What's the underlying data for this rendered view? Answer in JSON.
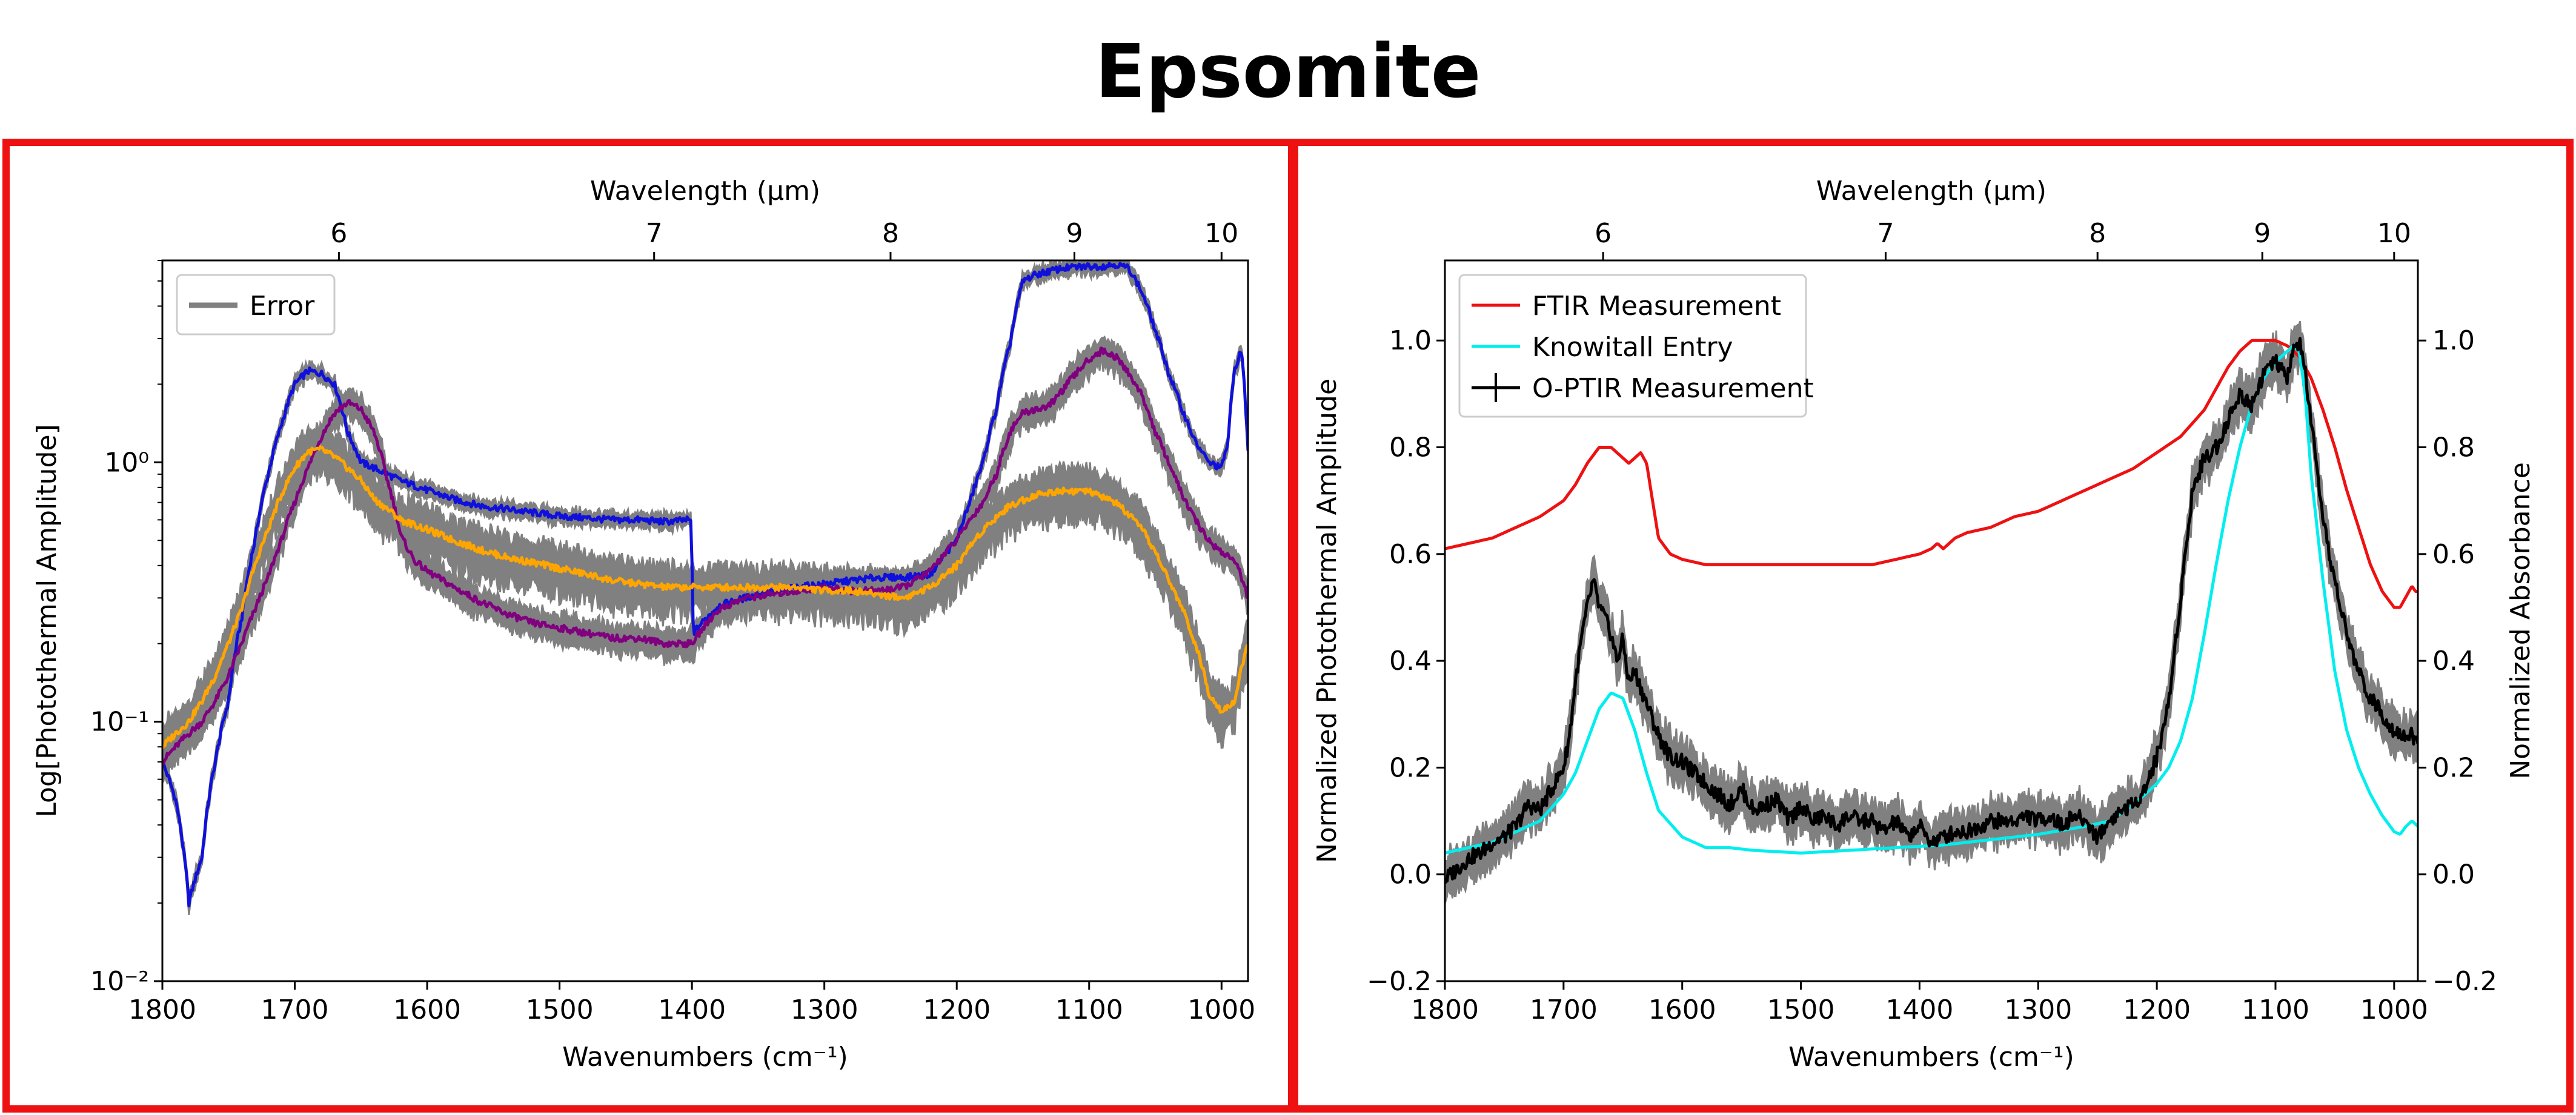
{
  "page": {
    "title": "Epsomite"
  },
  "colors": {
    "frame": "#ee1111",
    "error_band": "#808080",
    "blue": "#1010dd",
    "purple": "#800080",
    "orange": "#ffa500",
    "ftir": "#ee1111",
    "knowitall": "#00eeee",
    "optir": "#000000"
  },
  "chart_data": [
    {
      "type": "line",
      "title": "",
      "xlabel": "Wavenumbers (cm⁻¹)",
      "ylabel": "Log[Photothermal Amplitude]",
      "top_xlabel": "Wavelength (μm)",
      "xlim": [
        1800,
        980
      ],
      "ylim": [
        0.01,
        6
      ],
      "yscale": "log",
      "x_ticks": [
        1800,
        1700,
        1600,
        1500,
        1400,
        1300,
        1200,
        1100,
        1000
      ],
      "y_ticks": [
        {
          "value": 0.01,
          "label": "10⁻²"
        },
        {
          "value": 0.1,
          "label": "10⁻¹"
        },
        {
          "value": 1,
          "label": "10⁰"
        }
      ],
      "top_ticks": [
        6,
        7,
        8,
        9,
        10
      ],
      "legend": {
        "position": "top-left",
        "entries": [
          {
            "label": "Error",
            "color": "#808080"
          }
        ]
      },
      "series": [
        {
          "name": "blue spectrum",
          "color": "#1010dd",
          "band": true,
          "band_frac": 0.06,
          "x": [
            1800,
            1790,
            1780,
            1770,
            1760,
            1750,
            1740,
            1730,
            1720,
            1710,
            1700,
            1690,
            1680,
            1670,
            1660,
            1650,
            1640,
            1630,
            1620,
            1600,
            1580,
            1560,
            1540,
            1520,
            1500,
            1480,
            1460,
            1440,
            1420,
            1401,
            1399,
            1380,
            1350,
            1320,
            1300,
            1280,
            1260,
            1240,
            1220,
            1200,
            1190,
            1180,
            1170,
            1160,
            1150,
            1140,
            1120,
            1100,
            1090,
            1080,
            1070,
            1060,
            1050,
            1040,
            1030,
            1020,
            1010,
            1000,
            995,
            990,
            985,
            982,
            980
          ],
          "y": [
            0.07,
            0.05,
            0.02,
            0.03,
            0.07,
            0.12,
            0.25,
            0.5,
            0.9,
            1.4,
            2.0,
            2.25,
            2.2,
            2.0,
            1.3,
            1.0,
            0.95,
            0.9,
            0.85,
            0.78,
            0.72,
            0.68,
            0.66,
            0.64,
            0.62,
            0.61,
            0.6,
            0.6,
            0.59,
            0.6,
            0.22,
            0.28,
            0.31,
            0.33,
            0.34,
            0.35,
            0.36,
            0.36,
            0.37,
            0.5,
            0.7,
            1.0,
            1.6,
            2.8,
            5.0,
            5.3,
            5.6,
            5.7,
            5.7,
            5.8,
            5.6,
            4.5,
            3.2,
            2.2,
            1.6,
            1.2,
            1.0,
            0.95,
            1.2,
            2.3,
            2.7,
            1.7,
            1.1
          ]
        },
        {
          "name": "purple spectrum",
          "color": "#800080",
          "band": true,
          "band_frac": 0.12,
          "x": [
            1800,
            1790,
            1780,
            1770,
            1760,
            1750,
            1740,
            1730,
            1720,
            1710,
            1700,
            1690,
            1680,
            1670,
            1660,
            1650,
            1640,
            1630,
            1620,
            1610,
            1600,
            1580,
            1560,
            1540,
            1520,
            1500,
            1480,
            1460,
            1440,
            1420,
            1400,
            1380,
            1360,
            1340,
            1320,
            1300,
            1280,
            1260,
            1240,
            1220,
            1200,
            1180,
            1170,
            1160,
            1150,
            1140,
            1130,
            1120,
            1110,
            1100,
            1090,
            1080,
            1070,
            1060,
            1050,
            1040,
            1030,
            1020,
            1010,
            1000,
            990,
            980
          ],
          "y": [
            0.07,
            0.08,
            0.09,
            0.1,
            0.12,
            0.15,
            0.2,
            0.27,
            0.36,
            0.5,
            0.7,
            0.95,
            1.25,
            1.55,
            1.7,
            1.6,
            1.3,
            0.85,
            0.52,
            0.42,
            0.38,
            0.33,
            0.29,
            0.26,
            0.24,
            0.23,
            0.22,
            0.21,
            0.21,
            0.2,
            0.2,
            0.27,
            0.3,
            0.31,
            0.32,
            0.33,
            0.32,
            0.32,
            0.33,
            0.38,
            0.5,
            0.7,
            0.9,
            1.3,
            1.55,
            1.6,
            1.65,
            1.9,
            2.2,
            2.5,
            2.7,
            2.55,
            2.2,
            1.8,
            1.3,
            1.0,
            0.75,
            0.6,
            0.5,
            0.45,
            0.42,
            0.3
          ]
        },
        {
          "name": "orange spectrum",
          "color": "#ffa500",
          "band": true,
          "band_frac": 0.2,
          "x": [
            1800,
            1790,
            1780,
            1770,
            1760,
            1750,
            1740,
            1730,
            1720,
            1710,
            1700,
            1690,
            1680,
            1670,
            1660,
            1650,
            1640,
            1620,
            1600,
            1580,
            1560,
            1540,
            1520,
            1500,
            1480,
            1460,
            1440,
            1420,
            1400,
            1380,
            1360,
            1340,
            1320,
            1300,
            1280,
            1260,
            1240,
            1220,
            1200,
            1180,
            1160,
            1140,
            1120,
            1100,
            1080,
            1060,
            1040,
            1020,
            1010,
            1000,
            990,
            980
          ],
          "y": [
            0.08,
            0.09,
            0.1,
            0.12,
            0.15,
            0.2,
            0.27,
            0.4,
            0.55,
            0.75,
            0.95,
            1.1,
            1.12,
            1.05,
            0.95,
            0.85,
            0.72,
            0.6,
            0.55,
            0.5,
            0.46,
            0.43,
            0.41,
            0.39,
            0.37,
            0.35,
            0.34,
            0.33,
            0.33,
            0.33,
            0.33,
            0.33,
            0.33,
            0.32,
            0.32,
            0.31,
            0.3,
            0.33,
            0.4,
            0.55,
            0.68,
            0.75,
            0.78,
            0.77,
            0.7,
            0.55,
            0.35,
            0.2,
            0.13,
            0.11,
            0.12,
            0.2
          ]
        }
      ]
    },
    {
      "type": "line",
      "title": "",
      "xlabel": "Wavenumbers (cm⁻¹)",
      "ylabel": "Normalized Photothermal Amplitude",
      "ylabel_right": "Normalized Absorbance",
      "top_xlabel": "Wavelength (μm)",
      "xlim": [
        1800,
        980
      ],
      "ylim": [
        -0.2,
        1.15
      ],
      "y2lim": [
        -0.2,
        1.15
      ],
      "x_ticks": [
        1800,
        1700,
        1600,
        1500,
        1400,
        1300,
        1200,
        1100,
        1000
      ],
      "y_ticks": [
        -0.2,
        0.0,
        0.2,
        0.4,
        0.6,
        0.8,
        1.0
      ],
      "y_tick_labels": [
        "−0.2",
        "0.0",
        "0.2",
        "0.4",
        "0.6",
        "0.8",
        "1.0"
      ],
      "top_ticks": [
        6,
        7,
        8,
        9,
        10
      ],
      "legend": {
        "position": "top-left",
        "entries": [
          {
            "label": "FTIR Measurement",
            "color": "#ee1111"
          },
          {
            "label": "Knowitall Entry",
            "color": "#00eeee"
          },
          {
            "label": "O-PTIR Measurement",
            "color": "#000000",
            "marker": "errorbar"
          }
        ]
      },
      "series": [
        {
          "name": "FTIR Measurement",
          "color": "#ee1111",
          "axis": "right",
          "x": [
            1800,
            1760,
            1720,
            1700,
            1690,
            1680,
            1670,
            1660,
            1650,
            1645,
            1640,
            1635,
            1630,
            1625,
            1620,
            1610,
            1600,
            1580,
            1560,
            1540,
            1520,
            1500,
            1480,
            1460,
            1440,
            1420,
            1400,
            1390,
            1385,
            1380,
            1370,
            1360,
            1340,
            1320,
            1300,
            1280,
            1260,
            1240,
            1220,
            1200,
            1180,
            1160,
            1150,
            1140,
            1130,
            1120,
            1110,
            1100,
            1090,
            1080,
            1070,
            1060,
            1050,
            1040,
            1030,
            1020,
            1010,
            1000,
            995,
            990,
            985,
            982
          ],
          "y": [
            0.61,
            0.63,
            0.67,
            0.7,
            0.73,
            0.77,
            0.8,
            0.8,
            0.78,
            0.77,
            0.78,
            0.79,
            0.77,
            0.7,
            0.63,
            0.6,
            0.59,
            0.58,
            0.58,
            0.58,
            0.58,
            0.58,
            0.58,
            0.58,
            0.58,
            0.59,
            0.6,
            0.61,
            0.62,
            0.61,
            0.63,
            0.64,
            0.65,
            0.67,
            0.68,
            0.7,
            0.72,
            0.74,
            0.76,
            0.79,
            0.82,
            0.87,
            0.91,
            0.95,
            0.98,
            1.0,
            1.0,
            1.0,
            0.99,
            0.97,
            0.93,
            0.87,
            0.8,
            0.72,
            0.65,
            0.58,
            0.53,
            0.5,
            0.5,
            0.52,
            0.54,
            0.53
          ]
        },
        {
          "name": "Knowitall Entry",
          "color": "#00eeee",
          "axis": "right",
          "x": [
            1800,
            1760,
            1740,
            1720,
            1700,
            1690,
            1680,
            1670,
            1660,
            1650,
            1640,
            1630,
            1620,
            1600,
            1580,
            1560,
            1540,
            1500,
            1460,
            1420,
            1380,
            1340,
            1300,
            1260,
            1240,
            1220,
            1200,
            1190,
            1180,
            1170,
            1160,
            1150,
            1140,
            1130,
            1120,
            1110,
            1100,
            1090,
            1085,
            1080,
            1075,
            1070,
            1060,
            1050,
            1040,
            1030,
            1020,
            1010,
            1000,
            995,
            990,
            985,
            980
          ],
          "y": [
            0.04,
            0.06,
            0.08,
            0.1,
            0.15,
            0.19,
            0.25,
            0.31,
            0.34,
            0.33,
            0.27,
            0.19,
            0.12,
            0.07,
            0.05,
            0.05,
            0.045,
            0.04,
            0.045,
            0.05,
            0.055,
            0.065,
            0.075,
            0.09,
            0.1,
            0.13,
            0.17,
            0.2,
            0.25,
            0.33,
            0.45,
            0.58,
            0.7,
            0.8,
            0.88,
            0.93,
            0.96,
            0.98,
            0.99,
            0.98,
            0.9,
            0.75,
            0.55,
            0.38,
            0.27,
            0.2,
            0.15,
            0.11,
            0.08,
            0.075,
            0.09,
            0.1,
            0.09
          ]
        },
        {
          "name": "O-PTIR Measurement",
          "color": "#000000",
          "band": true,
          "band_abs": 0.035,
          "x": [
            1800,
            1790,
            1780,
            1770,
            1760,
            1750,
            1740,
            1730,
            1720,
            1710,
            1700,
            1695,
            1690,
            1685,
            1680,
            1675,
            1670,
            1665,
            1660,
            1655,
            1650,
            1645,
            1640,
            1630,
            1620,
            1610,
            1600,
            1590,
            1580,
            1570,
            1560,
            1550,
            1540,
            1530,
            1520,
            1510,
            1500,
            1490,
            1480,
            1470,
            1460,
            1450,
            1440,
            1430,
            1420,
            1410,
            1400,
            1390,
            1380,
            1370,
            1360,
            1350,
            1340,
            1330,
            1320,
            1310,
            1300,
            1290,
            1280,
            1270,
            1260,
            1250,
            1240,
            1230,
            1220,
            1210,
            1200,
            1190,
            1180,
            1170,
            1160,
            1150,
            1140,
            1130,
            1120,
            1110,
            1100,
            1090,
            1085,
            1080,
            1075,
            1070,
            1065,
            1060,
            1050,
            1040,
            1030,
            1020,
            1010,
            1000,
            990,
            985,
            982
          ],
          "y": [
            -0.01,
            0.01,
            0.03,
            0.04,
            0.06,
            0.07,
            0.09,
            0.13,
            0.12,
            0.16,
            0.2,
            0.26,
            0.36,
            0.44,
            0.5,
            0.55,
            0.5,
            0.48,
            0.45,
            0.4,
            0.44,
            0.36,
            0.38,
            0.32,
            0.26,
            0.22,
            0.21,
            0.19,
            0.17,
            0.15,
            0.13,
            0.16,
            0.12,
            0.13,
            0.14,
            0.1,
            0.13,
            0.1,
            0.11,
            0.09,
            0.11,
            0.1,
            0.1,
            0.08,
            0.1,
            0.07,
            0.09,
            0.06,
            0.07,
            0.08,
            0.08,
            0.09,
            0.1,
            0.1,
            0.1,
            0.11,
            0.1,
            0.11,
            0.09,
            0.11,
            0.1,
            0.07,
            0.1,
            0.12,
            0.13,
            0.16,
            0.22,
            0.32,
            0.52,
            0.72,
            0.78,
            0.8,
            0.85,
            0.9,
            0.88,
            0.94,
            0.96,
            0.93,
            0.98,
            1.0,
            0.94,
            0.85,
            0.75,
            0.66,
            0.55,
            0.45,
            0.38,
            0.33,
            0.3,
            0.27,
            0.26,
            0.26,
            0.25
          ]
        }
      ]
    }
  ]
}
